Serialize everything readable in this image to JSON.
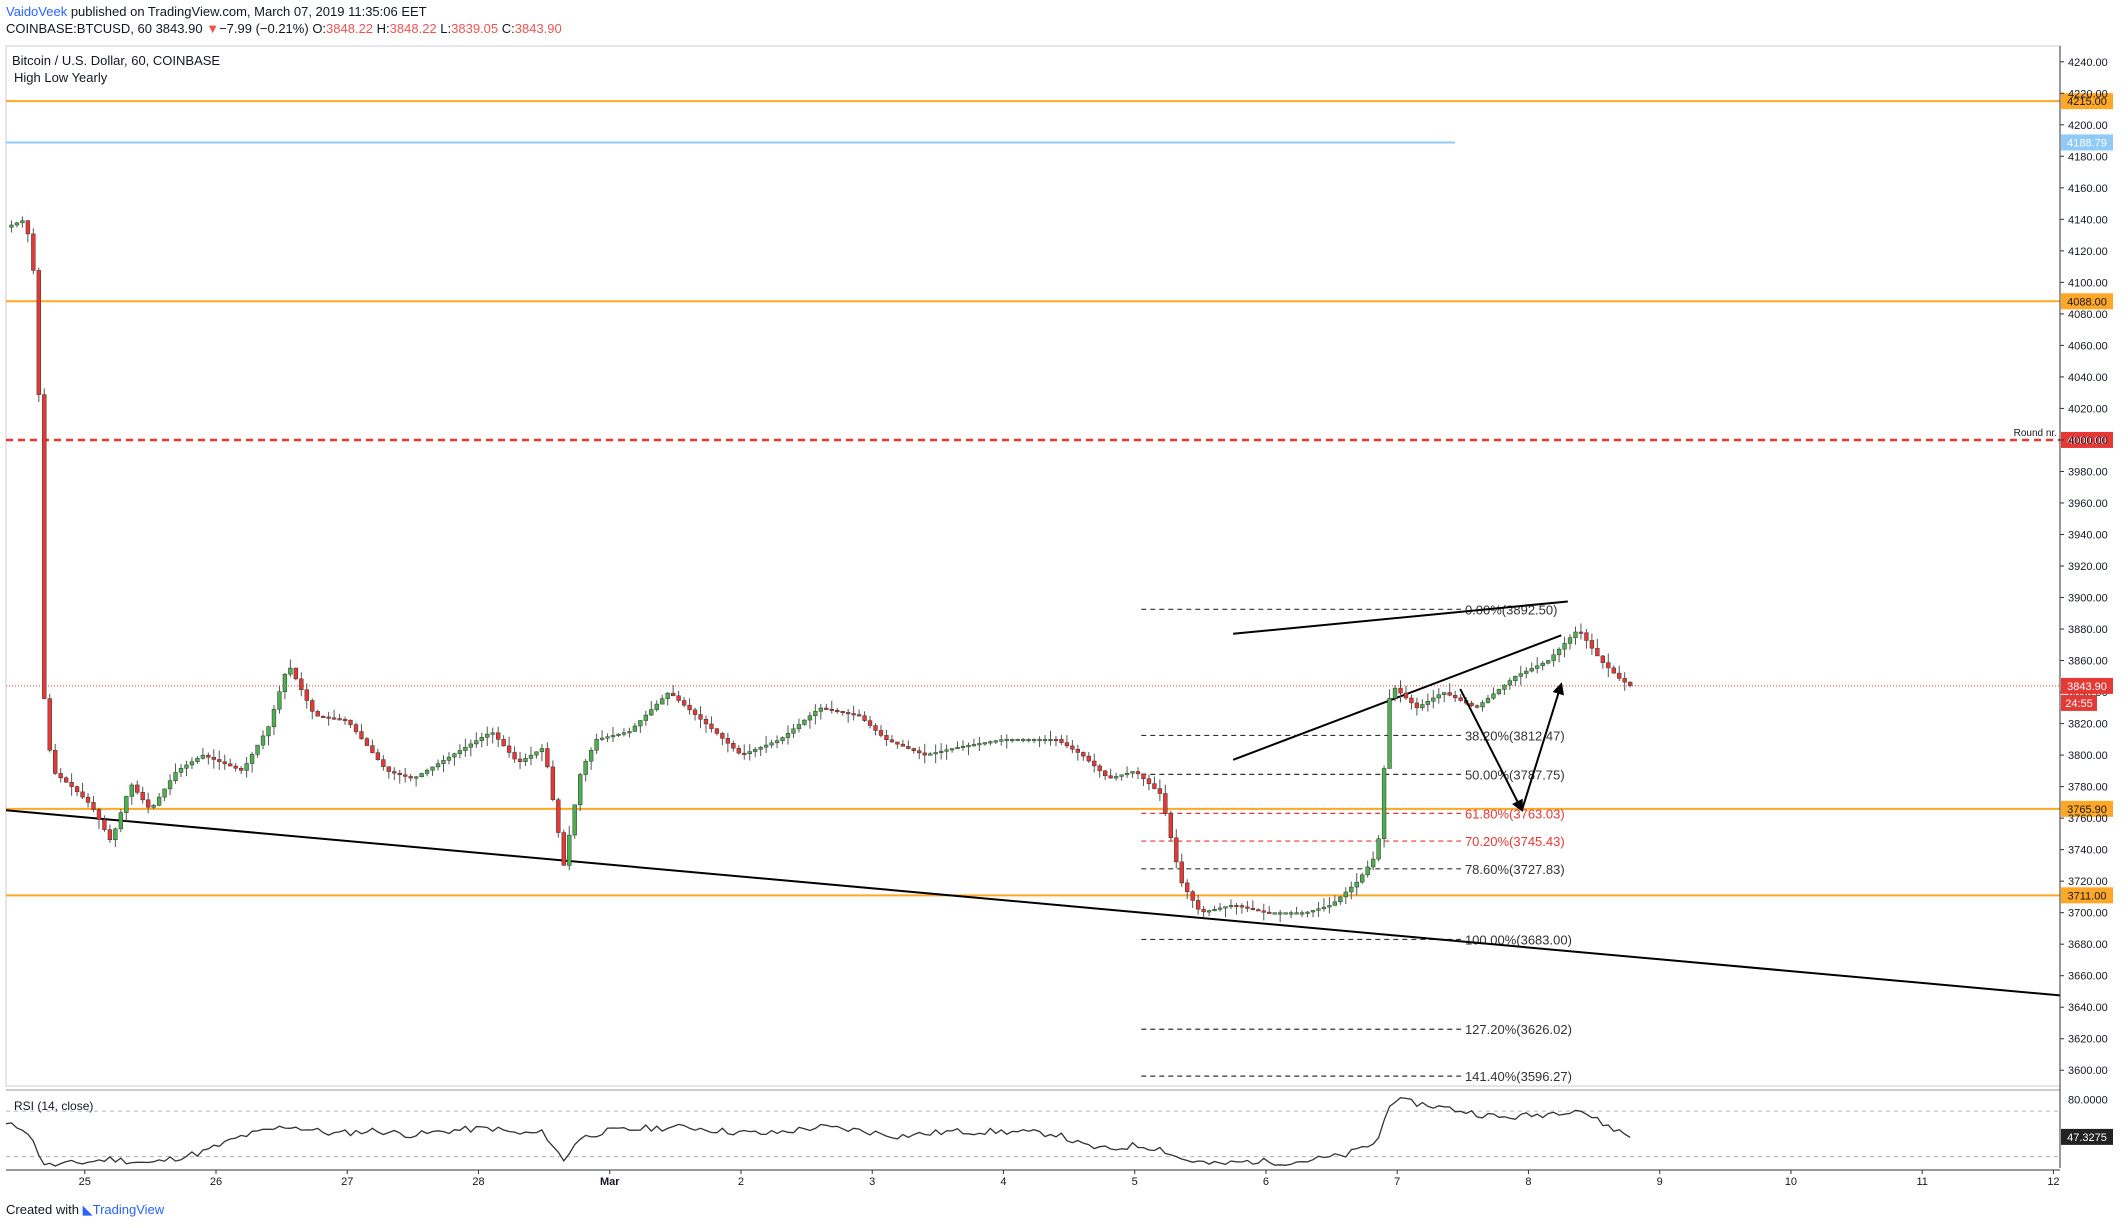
{
  "header": {
    "author": "VaidoVeek",
    "published_text": " published on TradingView.com, March 07, 2019 11:35:06 EET",
    "symbol": "COINBASE:BTCUSD, 60",
    "last": "3843.90",
    "change_arrow": "▼",
    "change": "−7.99 (−0.21%)",
    "o_label": "O:",
    "o": "3848.22",
    "h_label": "H:",
    "h": "3848.22",
    "l_label": "L:",
    "l": "3839.05",
    "c_label": "C:",
    "c": "3843.90"
  },
  "chart_title": "Bitcoin / U.S. Dollar, 60, COINBASE",
  "indicator_title": "High Low Yearly",
  "rsi_title": "RSI (14, close)",
  "footer": {
    "created_with": "Created with",
    "brand": "TradingView"
  },
  "colors": {
    "up": "#26a69a",
    "down": "#ef5350",
    "candle_up": "#4caf50",
    "candle_down": "#e53935",
    "level": "#ffa726",
    "round": "#e53935",
    "yearly_high": "#90caf9",
    "line": "#000000"
  },
  "chart_data": {
    "type": "candlestick",
    "price_axis": {
      "ylim": [
        3590,
        4250
      ],
      "ticks": [
        "4240.00",
        "4220.00",
        "4200.00",
        "4180.00",
        "4160.00",
        "4140.00",
        "4120.00",
        "4100.00",
        "4080.00",
        "4060.00",
        "4040.00",
        "4020.00",
        "4000.00",
        "3980.00",
        "3960.00",
        "3940.00",
        "3920.00",
        "3900.00",
        "3880.00",
        "3860.00",
        "3840.00",
        "3820.00",
        "3800.00",
        "3780.00",
        "3760.00",
        "3740.00",
        "3720.00",
        "3700.00",
        "3680.00",
        "3660.00",
        "3640.00",
        "3620.00",
        "3600.00"
      ]
    },
    "time_axis": {
      "labels": [
        "25",
        "26",
        "27",
        "28",
        "Mar",
        "2",
        "3",
        "4",
        "5",
        "6",
        "7",
        "8",
        "9",
        "10",
        "11",
        "12"
      ],
      "label_days": [
        0,
        1,
        2,
        3,
        4,
        5,
        6,
        7,
        8,
        9,
        10,
        11,
        12,
        13,
        14,
        15
      ],
      "start_day": -0.6,
      "end_day": 15.05
    },
    "levels": [
      {
        "price": 4215.0,
        "label": "4215.00",
        "color": "#ffa726",
        "style": "solid",
        "extent": "full"
      },
      {
        "price": 4188.79,
        "label": "4188.79",
        "color": "#90caf9",
        "style": "solid",
        "extent": "partial"
      },
      {
        "price": 4088.0,
        "label": "4088.00",
        "color": "#ffa726",
        "style": "solid",
        "extent": "full"
      },
      {
        "price": 4000.0,
        "label": "4000.00",
        "color": "#e53935",
        "style": "dashed",
        "extent": "full",
        "note": "Round nr."
      },
      {
        "price": 3765.9,
        "label": "3765.90",
        "color": "#ffa726",
        "style": "solid",
        "extent": "full"
      },
      {
        "price": 3711.0,
        "label": "3711.00",
        "color": "#ffa726",
        "style": "solid",
        "extent": "full"
      }
    ],
    "current_price": {
      "value": 3843.9,
      "label": "3843.90",
      "countdown": "24:55"
    },
    "fibonacci": [
      {
        "ratio": "0.00%",
        "price": 3892.5,
        "text": "0.00%(3892.50)",
        "red": false
      },
      {
        "ratio": "38.20%",
        "price": 3812.47,
        "text": "38.20%(3812.47)",
        "red": false
      },
      {
        "ratio": "50.00%",
        "price": 3787.75,
        "text": "50.00%(3787.75)",
        "red": false
      },
      {
        "ratio": "61.80%",
        "price": 3763.03,
        "text": "61.80%(3763.03)",
        "red": true
      },
      {
        "ratio": "70.20%",
        "price": 3745.43,
        "text": "70.20%(3745.43)",
        "red": true
      },
      {
        "ratio": "78.60%",
        "price": 3727.83,
        "text": "78.60%(3727.83)",
        "red": false
      },
      {
        "ratio": "100.00%",
        "price": 3683.0,
        "text": "100.00%(3683.00)",
        "red": false
      },
      {
        "ratio": "127.20%",
        "price": 3626.02,
        "text": "127.20%(3626.02)",
        "red": false
      },
      {
        "ratio": "141.40%",
        "price": 3596.27,
        "text": "141.40%(3596.27)",
        "red": false
      }
    ],
    "fib_range_days": [
      8.05,
      11.4
    ],
    "trendlines": [
      {
        "from": [
          -0.6,
          3765.0
        ],
        "to": [
          15.05,
          3647.5
        ]
      },
      {
        "from": [
          8.75,
          3877.0
        ],
        "to": [
          11.3,
          3897.5
        ]
      },
      {
        "from": [
          8.75,
          3797.0
        ],
        "to": [
          11.25,
          3876.0
        ]
      }
    ],
    "projection": [
      [
        10.48,
        3842.0
      ],
      [
        10.95,
        3765.0
      ],
      [
        11.25,
        3845.0
      ]
    ],
    "anchors": [
      [
        -0.6,
        4135
      ],
      [
        -0.45,
        4140
      ],
      [
        -0.36,
        4090
      ],
      [
        -0.32,
        3845
      ],
      [
        -0.25,
        3790
      ],
      [
        -0.1,
        3780
      ],
      [
        0.05,
        3768
      ],
      [
        0.2,
        3745
      ],
      [
        0.35,
        3782
      ],
      [
        0.5,
        3765
      ],
      [
        0.7,
        3790
      ],
      [
        0.9,
        3800
      ],
      [
        1.2,
        3790
      ],
      [
        1.4,
        3818
      ],
      [
        1.55,
        3858
      ],
      [
        1.75,
        3825
      ],
      [
        2.0,
        3822
      ],
      [
        2.3,
        3790
      ],
      [
        2.5,
        3785
      ],
      [
        2.8,
        3800
      ],
      [
        3.0,
        3810
      ],
      [
        3.1,
        3815
      ],
      [
        3.3,
        3795
      ],
      [
        3.5,
        3805
      ],
      [
        3.65,
        3730
      ],
      [
        3.78,
        3790
      ],
      [
        3.9,
        3810
      ],
      [
        4.15,
        3815
      ],
      [
        4.45,
        3840
      ],
      [
        4.8,
        3815
      ],
      [
        5.0,
        3800
      ],
      [
        5.3,
        3810
      ],
      [
        5.6,
        3830
      ],
      [
        5.9,
        3825
      ],
      [
        6.1,
        3810
      ],
      [
        6.4,
        3800
      ],
      [
        6.65,
        3805
      ],
      [
        7.0,
        3810
      ],
      [
        7.4,
        3810
      ],
      [
        7.6,
        3800
      ],
      [
        7.8,
        3785
      ],
      [
        8.0,
        3790
      ],
      [
        8.2,
        3775
      ],
      [
        8.35,
        3720
      ],
      [
        8.5,
        3700
      ],
      [
        8.75,
        3705
      ],
      [
        9.0,
        3700
      ],
      [
        9.3,
        3700
      ],
      [
        9.5,
        3705
      ],
      [
        9.7,
        3720
      ],
      [
        9.85,
        3738
      ],
      [
        9.95,
        3845
      ],
      [
        10.15,
        3830
      ],
      [
        10.35,
        3840
      ],
      [
        10.6,
        3830
      ],
      [
        10.9,
        3850
      ],
      [
        11.15,
        3860
      ],
      [
        11.38,
        3880
      ],
      [
        11.55,
        3860
      ],
      [
        11.7,
        3848
      ],
      [
        11.78,
        3843.9
      ]
    ],
    "rsi": {
      "ylim": [
        20,
        85
      ],
      "ticks": [
        "80.0000"
      ],
      "guides": [
        70,
        30
      ],
      "last": "47.3275",
      "anchors": [
        [
          -0.6,
          58
        ],
        [
          -0.45,
          55
        ],
        [
          -0.3,
          22
        ],
        [
          0.0,
          25
        ],
        [
          0.2,
          28
        ],
        [
          0.5,
          24
        ],
        [
          0.9,
          34
        ],
        [
          1.2,
          48
        ],
        [
          1.55,
          57
        ],
        [
          1.9,
          50
        ],
        [
          2.2,
          53
        ],
        [
          2.5,
          49
        ],
        [
          2.8,
          53
        ],
        [
          3.1,
          55
        ],
        [
          3.3,
          50
        ],
        [
          3.5,
          51
        ],
        [
          3.65,
          26
        ],
        [
          3.75,
          45
        ],
        [
          3.95,
          52
        ],
        [
          4.3,
          55
        ],
        [
          4.6,
          56
        ],
        [
          4.9,
          52
        ],
        [
          5.2,
          50
        ],
        [
          5.6,
          56
        ],
        [
          5.9,
          53
        ],
        [
          6.2,
          48
        ],
        [
          6.6,
          52
        ],
        [
          7.0,
          52
        ],
        [
          7.4,
          50
        ],
        [
          7.6,
          40
        ],
        [
          7.8,
          36
        ],
        [
          8.0,
          40
        ],
        [
          8.2,
          37
        ],
        [
          8.35,
          28
        ],
        [
          8.6,
          23
        ],
        [
          8.9,
          26
        ],
        [
          9.2,
          25
        ],
        [
          9.6,
          31
        ],
        [
          9.85,
          43
        ],
        [
          9.95,
          80
        ],
        [
          10.2,
          76
        ],
        [
          10.5,
          70
        ],
        [
          10.8,
          64
        ],
        [
          11.1,
          67
        ],
        [
          11.38,
          72
        ],
        [
          11.55,
          60
        ],
        [
          11.78,
          47.3
        ]
      ]
    }
  }
}
